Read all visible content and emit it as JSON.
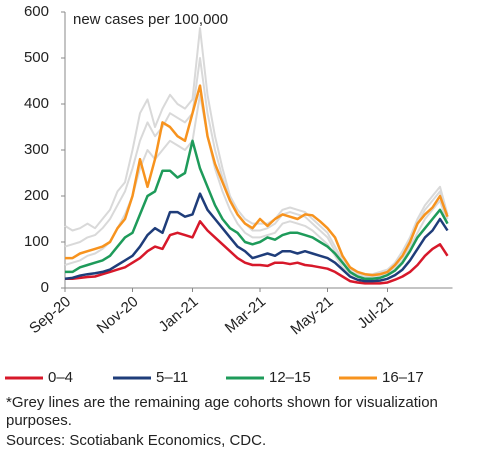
{
  "chart_data": {
    "type": "line",
    "ylabel": "new cases per 100,000",
    "categories": [
      "Sep-20",
      null,
      null,
      null,
      null,
      null,
      null,
      null,
      null,
      "Nov-20",
      null,
      null,
      null,
      null,
      null,
      null,
      null,
      "Jan-21",
      null,
      null,
      null,
      null,
      null,
      null,
      null,
      null,
      "Mar-21",
      null,
      null,
      null,
      null,
      null,
      null,
      null,
      null,
      "May-21",
      null,
      null,
      null,
      null,
      null,
      null,
      null,
      "Jul-21",
      null,
      null,
      null,
      null,
      null,
      null,
      null,
      null
    ],
    "ylim": [
      0,
      600
    ],
    "yticks": [
      0,
      100,
      200,
      300,
      400,
      500,
      600
    ],
    "series": [
      {
        "color": "#d9d9d9",
        "values": [
          135,
          125,
          130,
          140,
          130,
          150,
          170,
          210,
          230,
          300,
          380,
          410,
          350,
          390,
          420,
          400,
          390,
          410,
          565,
          420,
          330,
          260,
          200,
          170,
          150,
          140,
          140,
          140,
          150,
          170,
          175,
          170,
          165,
          150,
          135,
          120,
          90,
          60,
          40,
          35,
          30,
          30,
          35,
          40,
          55,
          80,
          110,
          150,
          180,
          200,
          220,
          160
        ]
      },
      {
        "color": "#d9d9d9",
        "values": [
          90,
          95,
          100,
          110,
          115,
          130,
          150,
          180,
          210,
          260,
          320,
          360,
          330,
          350,
          380,
          370,
          360,
          380,
          500,
          380,
          300,
          240,
          190,
          160,
          140,
          125,
          125,
          130,
          140,
          160,
          165,
          160,
          155,
          140,
          125,
          110,
          80,
          55,
          35,
          30,
          25,
          25,
          30,
          35,
          45,
          70,
          100,
          140,
          170,
          190,
          210,
          150
        ]
      },
      {
        "color": "#d9d9d9",
        "values": [
          50,
          55,
          60,
          70,
          75,
          85,
          100,
          130,
          160,
          200,
          260,
          300,
          280,
          300,
          320,
          310,
          300,
          320,
          420,
          330,
          260,
          210,
          170,
          140,
          120,
          110,
          110,
          115,
          120,
          140,
          145,
          140,
          135,
          125,
          110,
          95,
          70,
          45,
          30,
          25,
          22,
          22,
          25,
          30,
          40,
          60,
          90,
          120,
          150,
          170,
          190,
          140
        ]
      },
      {
        "name": "0–4",
        "color": "#d7182a",
        "values": [
          20,
          20,
          22,
          24,
          25,
          30,
          35,
          40,
          45,
          55,
          65,
          80,
          90,
          85,
          115,
          120,
          115,
          110,
          145,
          125,
          110,
          95,
          80,
          65,
          55,
          50,
          50,
          48,
          55,
          55,
          52,
          55,
          50,
          48,
          45,
          42,
          35,
          25,
          15,
          12,
          10,
          10,
          10,
          12,
          18,
          25,
          35,
          50,
          70,
          85,
          95,
          70
        ]
      },
      {
        "name": "5–11",
        "color": "#1f3d7a",
        "values": [
          20,
          22,
          27,
          30,
          32,
          35,
          40,
          50,
          60,
          70,
          90,
          115,
          130,
          120,
          165,
          165,
          155,
          160,
          205,
          170,
          150,
          130,
          110,
          90,
          80,
          65,
          70,
          75,
          70,
          80,
          80,
          75,
          80,
          75,
          70,
          65,
          55,
          40,
          25,
          18,
          15,
          15,
          16,
          20,
          28,
          40,
          60,
          85,
          110,
          125,
          150,
          125
        ]
      },
      {
        "name": "12–15",
        "color": "#1e9b5a",
        "values": [
          35,
          35,
          45,
          50,
          55,
          60,
          70,
          90,
          110,
          120,
          160,
          200,
          210,
          255,
          255,
          240,
          250,
          320,
          260,
          220,
          180,
          150,
          130,
          120,
          100,
          95,
          100,
          110,
          105,
          115,
          120,
          120,
          115,
          110,
          100,
          90,
          75,
          55,
          35,
          25,
          20,
          20,
          22,
          28,
          38,
          55,
          80,
          110,
          130,
          150,
          170,
          140
        ]
      },
      {
        "name": "16–17",
        "color": "#f7931e",
        "values": [
          65,
          65,
          75,
          80,
          85,
          90,
          100,
          130,
          150,
          200,
          280,
          220,
          280,
          360,
          350,
          330,
          320,
          380,
          440,
          330,
          270,
          230,
          190,
          160,
          140,
          130,
          150,
          135,
          150,
          160,
          155,
          150,
          160,
          158,
          145,
          130,
          110,
          70,
          45,
          35,
          30,
          28,
          30,
          35,
          50,
          70,
          100,
          140,
          160,
          175,
          200,
          155
        ]
      }
    ],
    "notes": [
      "*Grey lines are the remaining age cohorts shown for visualization purposes.",
      "Sources: Scotiabank Economics, CDC."
    ]
  }
}
